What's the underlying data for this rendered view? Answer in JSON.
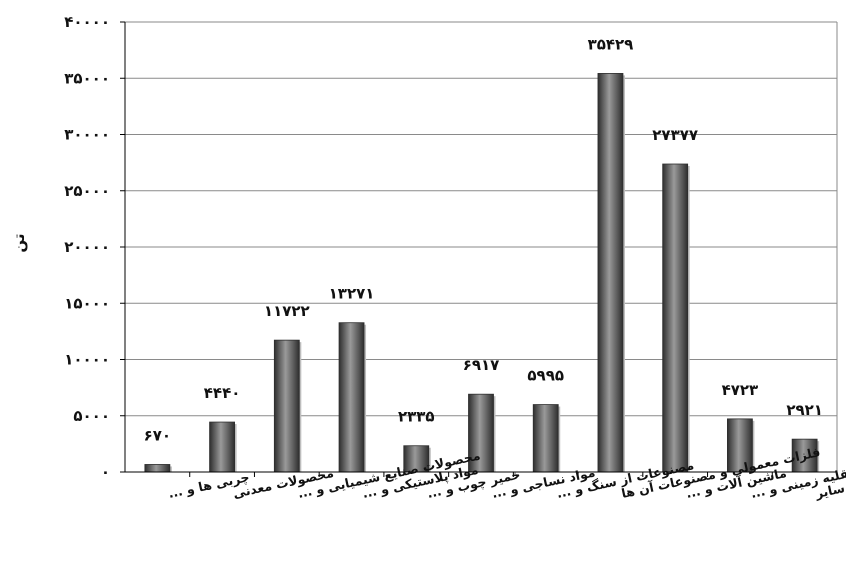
{
  "chart_data": {
    "type": "bar",
    "ylabel": "تن",
    "ylim": [
      0,
      40000
    ],
    "yticks": [
      0,
      5000,
      10000,
      15000,
      20000,
      25000,
      30000,
      35000,
      40000
    ],
    "ytick_labels": [
      "۰",
      "۵۰۰۰",
      "۱۰۰۰۰",
      "۱۵۰۰۰",
      "۲۰۰۰۰",
      "۲۵۰۰۰",
      "۳۰۰۰۰",
      "۳۵۰۰۰",
      "۴۰۰۰۰"
    ],
    "grid": "horizontal",
    "categories": [
      [
        "چربی ها و ..."
      ],
      [
        "محصولات معدنی"
      ],
      [
        "محصولات صنایع شیمیایی و ..."
      ],
      [
        "مواد پلاستیکی و ..."
      ],
      [
        "خمیر چوب و ..."
      ],
      [
        "مواد نساجی و ..."
      ],
      [
        "مصنوعات از سنگ و ..."
      ],
      [
        "فلزات معمولی و مصنوعات آن ها"
      ],
      [
        "ماشین آلات و ..."
      ],
      [
        "وسایل نقلیه زمینی و ..."
      ],
      [
        "سایر"
      ]
    ],
    "values": [
      670,
      4440,
      11722,
      13271,
      2335,
      6917,
      5995,
      35429,
      27377,
      4723,
      2921
    ],
    "value_labels": [
      "۶۷۰",
      "۴۴۴۰",
      "۱۱۷۲۲",
      "۱۳۲۷۱",
      "۲۳۳۵",
      "۶۹۱۷",
      "۵۹۹۵",
      "۳۵۴۲۹",
      "۲۷۳۷۷",
      "۴۷۲۳",
      "۲۹۲۱"
    ],
    "colors": {
      "bar_fill": "#6e6e6e",
      "bar_dark": "#2e2e2e",
      "bar_light": "#9a9a9a",
      "grid": "#8a8a8a",
      "axis": "#000000"
    }
  }
}
